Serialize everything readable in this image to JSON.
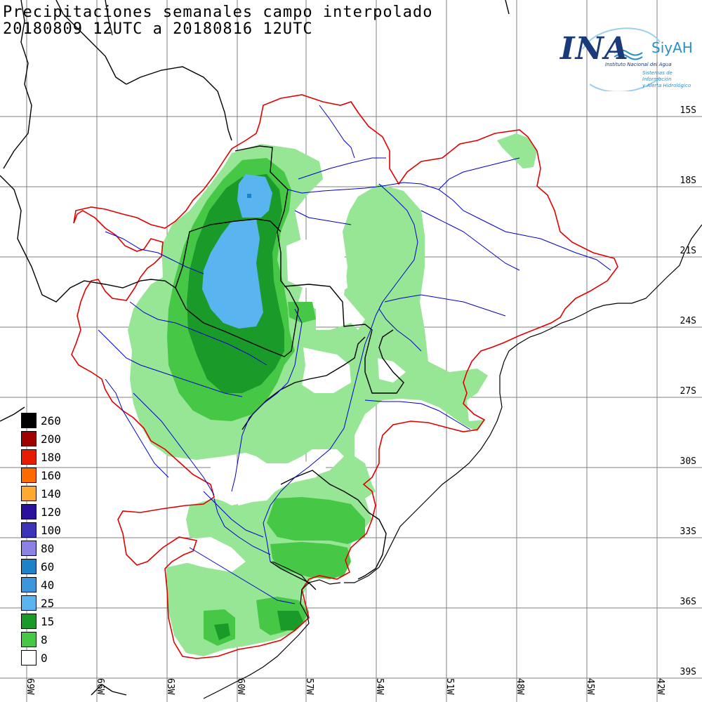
{
  "title": {
    "line1": "Precipitaciones semanales campo interpolado",
    "line2": "20180809 12UTC a 20180816 12UTC"
  },
  "logo": {
    "ina": "INA",
    "siyah": "SiyAH",
    "subtitle": "Instituto Nacional del Agua",
    "subtitle2_line1": "Sistemas de Información",
    "subtitle2_line2": "y Alerta Hidrológico"
  },
  "legend": [
    {
      "label": "260",
      "color": "#000000"
    },
    {
      "label": "200",
      "color": "#a00000"
    },
    {
      "label": "180",
      "color": "#e81c00"
    },
    {
      "label": "160",
      "color": "#ff6a00"
    },
    {
      "label": "140",
      "color": "#ffaa33"
    },
    {
      "label": "120",
      "color": "#2a109c"
    },
    {
      "label": "100",
      "color": "#3c33b8"
    },
    {
      "label": "80",
      "color": "#8c82e6"
    },
    {
      "label": "60",
      "color": "#1e82c8"
    },
    {
      "label": "40",
      "color": "#3c96dc"
    },
    {
      "label": "25",
      "color": "#5ab4f0"
    },
    {
      "label": "15",
      "color": "#1a9a28"
    },
    {
      "label": "8",
      "color": "#46c846"
    },
    {
      "label": "0",
      "color": "#ffffff"
    }
  ],
  "lat_labels": [
    "15S",
    "18S",
    "21S",
    "24S",
    "27S",
    "30S",
    "33S",
    "36S",
    "39S"
  ],
  "lon_labels": [
    "69W",
    "66W",
    "63W",
    "60W",
    "57W",
    "54W",
    "51W",
    "48W",
    "45W",
    "42W"
  ],
  "colors": {
    "light_green": "#96e696",
    "mid_green": "#46c846",
    "dark_green": "#1a9a28",
    "light_blue": "#5ab4f0",
    "basin_border": "#e00000",
    "rivers": "#0000c8",
    "borders": "#000000",
    "grid": "#808080"
  }
}
